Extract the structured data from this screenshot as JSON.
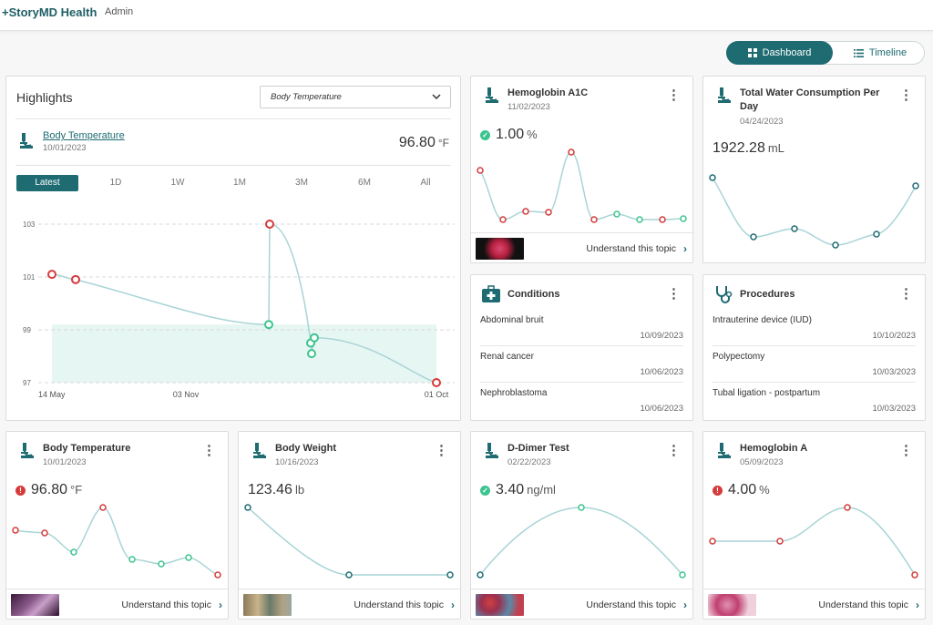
{
  "header": {
    "logo": "+StoryMD Health",
    "user": "Admin"
  },
  "view_toggle": {
    "dashboard": "Dashboard",
    "timeline": "Timeline"
  },
  "highlights": {
    "title": "Highlights",
    "selector_value": "Body Temperature",
    "metric_name": "Body Temperature",
    "metric_date": "10/01/2023",
    "metric_value": "96.80",
    "metric_unit": "°F",
    "ranges": [
      "Latest",
      "1D",
      "1W",
      "1M",
      "3M",
      "6M",
      "All"
    ],
    "selected_range": "Latest"
  },
  "cards": {
    "hba1c": {
      "title": "Hemoglobin A1C",
      "date": "11/02/2023",
      "value": "1.00",
      "unit": "%",
      "status": "ok",
      "link": "Understand this topic"
    },
    "water": {
      "title": "Total Water Consumption Per Day",
      "date": "04/24/2023",
      "value": "1922.28",
      "unit": "mL"
    },
    "conditions": {
      "title": "Conditions",
      "items": [
        {
          "name": "Abdominal bruit",
          "date": "10/09/2023"
        },
        {
          "name": "Renal cancer",
          "date": "10/06/2023"
        },
        {
          "name": "Nephroblastoma",
          "date": "10/06/2023"
        }
      ]
    },
    "procedures": {
      "title": "Procedures",
      "items": [
        {
          "name": "Intrauterine device (IUD)",
          "date": "10/10/2023"
        },
        {
          "name": "Polypectomy",
          "date": "10/03/2023"
        },
        {
          "name": "Tubal ligation - postpartum",
          "date": "10/03/2023"
        }
      ]
    },
    "temp": {
      "title": "Body Temperature",
      "date": "10/01/2023",
      "value": "96.80",
      "unit": "°F",
      "status": "bad",
      "link": "Understand this topic"
    },
    "weight": {
      "title": "Body Weight",
      "date": "10/16/2023",
      "value": "123.46",
      "unit": "lb",
      "link": "Understand this topic"
    },
    "ddimer": {
      "title": "D-Dimer Test",
      "date": "02/22/2023",
      "value": "3.40",
      "unit": "ng/ml",
      "status": "ok",
      "link": "Understand this topic"
    },
    "hba": {
      "title": "Hemoglobin A",
      "date": "05/09/2023",
      "value": "4.00",
      "unit": "%",
      "status": "bad",
      "link": "Understand this topic"
    }
  },
  "chart_data": {
    "type": "line",
    "title": "",
    "x_tick_labels": [
      "14 May",
      "03 Nov",
      "01 Oct"
    ],
    "y_tick_labels": [
      "103",
      "101",
      "99",
      "97"
    ],
    "ylim": [
      97,
      103
    ],
    "normal_range": [
      97,
      99.2
    ],
    "points": [
      {
        "y": 101.1,
        "status": "high"
      },
      {
        "y": 100.9,
        "status": "high"
      },
      {
        "y": 99.2,
        "status": "normal"
      },
      {
        "y": 103.0,
        "status": "high"
      },
      {
        "y": 98.5,
        "status": "normal"
      },
      {
        "y": 98.1,
        "status": "normal"
      },
      {
        "y": 98.7,
        "status": "normal"
      },
      {
        "y": 97.0,
        "status": "high"
      }
    ],
    "colors": {
      "high": "#d63a3a",
      "normal": "#3cc48f",
      "line": "#a9d4d6",
      "band": "#e6f6f2"
    }
  },
  "colors": {
    "accent": "#1e6b72",
    "ok": "#3cc48f",
    "bad": "#d63a3a",
    "neutral_point": "#1e6b72"
  }
}
